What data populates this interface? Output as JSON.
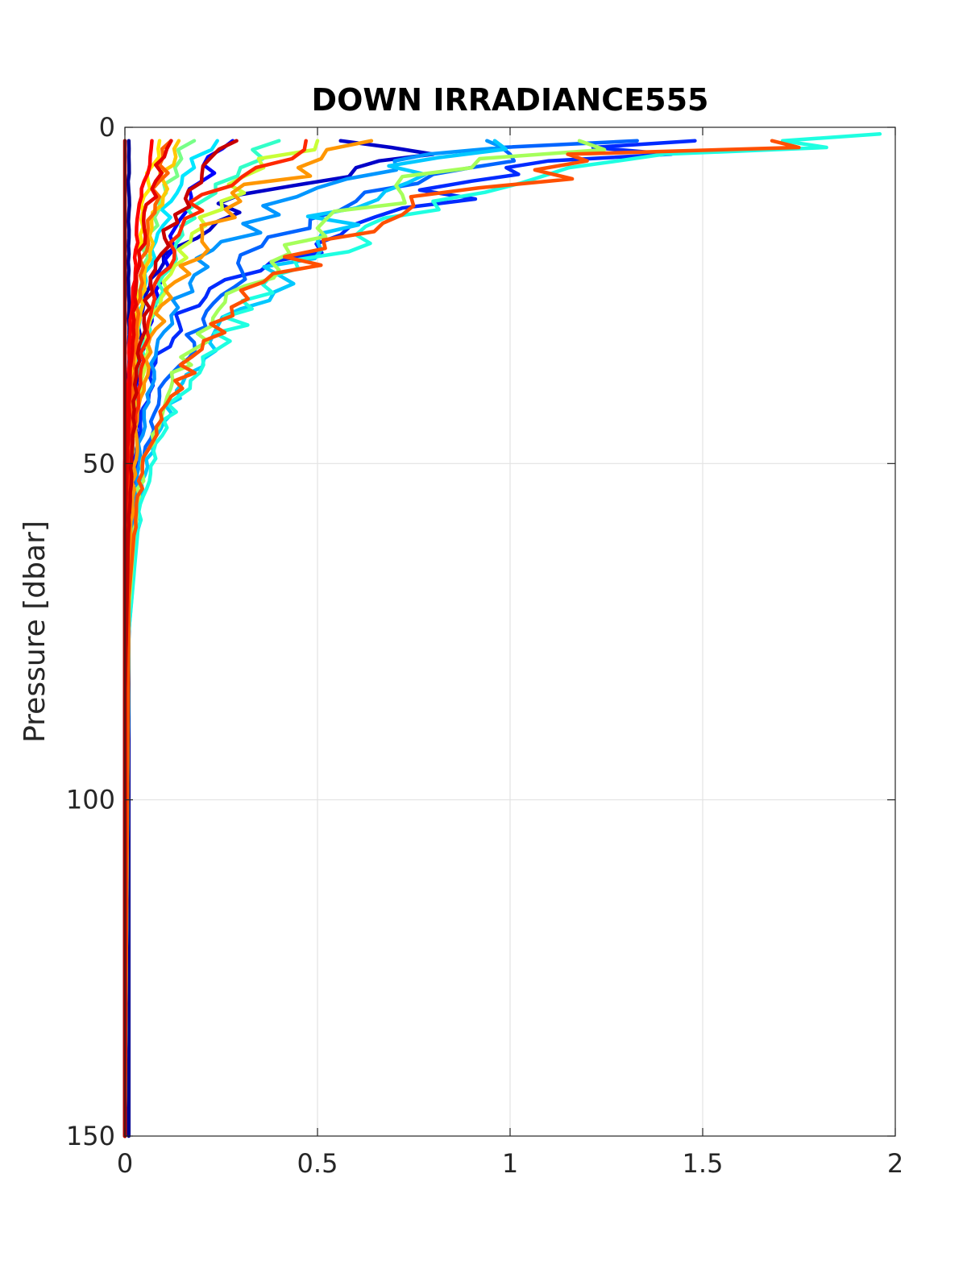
{
  "chart_data": {
    "type": "line",
    "title": "DOWN IRRADIANCE555",
    "xlabel": "",
    "ylabel": "Pressure [dbar]",
    "xlim": [
      0,
      2
    ],
    "ylim": [
      0,
      150
    ],
    "y_reversed": true,
    "grid": true,
    "legend": "none",
    "x_ticks": [
      "0",
      "0.5",
      "1",
      "1.5",
      "2"
    ],
    "y_ticks": [
      "0",
      "50",
      "100",
      "150"
    ],
    "series": [
      {
        "color": "#00008f",
        "points": [
          [
            0.01,
            2
          ],
          [
            0.01,
            150
          ]
        ]
      },
      {
        "color": "#0000c8",
        "points": [
          [
            0.56,
            2
          ],
          [
            0.8,
            4
          ],
          [
            0.6,
            6
          ],
          [
            0.3,
            10
          ],
          [
            0.24,
            14
          ],
          [
            0.1,
            19
          ],
          [
            0.05,
            26
          ],
          [
            0.03,
            36
          ],
          [
            0.02,
            46
          ],
          [
            0.01,
            60
          ],
          [
            0.0,
            90
          ],
          [
            0.0,
            150
          ]
        ]
      },
      {
        "color": "#0000ff",
        "points": [
          [
            0.28,
            2
          ],
          [
            0.2,
            8
          ],
          [
            0.13,
            15
          ],
          [
            0.09,
            22
          ],
          [
            0.06,
            30
          ],
          [
            0.04,
            40
          ],
          [
            0.02,
            52
          ],
          [
            0.01,
            70
          ],
          [
            0.0,
            100
          ],
          [
            0.0,
            150
          ]
        ]
      },
      {
        "color": "#002aff",
        "points": [
          [
            1.48,
            2
          ],
          [
            1.1,
            5
          ],
          [
            0.9,
            8
          ],
          [
            0.72,
            12
          ],
          [
            0.56,
            16
          ],
          [
            0.38,
            20
          ],
          [
            0.22,
            24
          ],
          [
            0.14,
            29
          ],
          [
            0.08,
            35
          ],
          [
            0.04,
            44
          ],
          [
            0.02,
            55
          ],
          [
            0.0,
            80
          ],
          [
            0.0,
            150
          ]
        ]
      },
      {
        "color": "#0064ff",
        "points": [
          [
            1.33,
            2
          ],
          [
            1.0,
            4
          ],
          [
            0.8,
            7
          ],
          [
            0.6,
            11
          ],
          [
            0.48,
            15
          ],
          [
            0.3,
            19
          ],
          [
            0.25,
            25
          ],
          [
            0.18,
            32
          ],
          [
            0.09,
            40
          ],
          [
            0.04,
            50
          ],
          [
            0.02,
            62
          ],
          [
            0.0,
            90
          ],
          [
            0.0,
            150
          ]
        ]
      },
      {
        "color": "#0096ff",
        "points": [
          [
            0.94,
            2
          ],
          [
            0.7,
            5
          ],
          [
            0.5,
            9
          ],
          [
            0.4,
            13
          ],
          [
            0.25,
            17
          ],
          [
            0.18,
            22
          ],
          [
            0.12,
            28
          ],
          [
            0.08,
            34
          ],
          [
            0.05,
            42
          ],
          [
            0.03,
            52
          ],
          [
            0.01,
            70
          ],
          [
            0.0,
            150
          ]
        ]
      },
      {
        "color": "#00c8ff",
        "points": [
          [
            0.96,
            2
          ],
          [
            0.78,
            7
          ],
          [
            0.6,
            12
          ],
          [
            0.5,
            17
          ],
          [
            0.4,
            22
          ],
          [
            0.3,
            27
          ],
          [
            0.22,
            32
          ],
          [
            0.15,
            38
          ],
          [
            0.08,
            46
          ],
          [
            0.04,
            55
          ],
          [
            0.01,
            75
          ],
          [
            0.0,
            150
          ]
        ]
      },
      {
        "color": "#00e6ff",
        "points": [
          [
            0.24,
            2
          ],
          [
            0.18,
            6
          ],
          [
            0.12,
            11
          ],
          [
            0.08,
            17
          ],
          [
            0.05,
            24
          ],
          [
            0.03,
            32
          ],
          [
            0.02,
            42
          ],
          [
            0.01,
            55
          ],
          [
            0.0,
            80
          ],
          [
            0.0,
            150
          ]
        ]
      },
      {
        "color": "#1effe1",
        "points": [
          [
            1.96,
            1
          ],
          [
            1.4,
            4
          ],
          [
            1.1,
            7
          ],
          [
            0.8,
            11
          ],
          [
            0.6,
            16
          ],
          [
            0.45,
            21
          ],
          [
            0.33,
            27
          ],
          [
            0.24,
            33
          ],
          [
            0.14,
            40
          ],
          [
            0.08,
            47
          ],
          [
            0.04,
            56
          ],
          [
            0.01,
            75
          ],
          [
            0.0,
            150
          ]
        ]
      },
      {
        "color": "#32ffc8",
        "points": [
          [
            0.4,
            2
          ],
          [
            0.3,
            6
          ],
          [
            0.2,
            11
          ],
          [
            0.15,
            16
          ],
          [
            0.1,
            22
          ],
          [
            0.06,
            29
          ],
          [
            0.04,
            37
          ],
          [
            0.02,
            46
          ],
          [
            0.01,
            58
          ],
          [
            0.0,
            85
          ],
          [
            0.0,
            150
          ]
        ]
      },
      {
        "color": "#78ff87",
        "points": [
          [
            0.18,
            2
          ],
          [
            0.13,
            6
          ],
          [
            0.09,
            11
          ],
          [
            0.06,
            17
          ],
          [
            0.04,
            24
          ],
          [
            0.02,
            33
          ],
          [
            0.01,
            44
          ],
          [
            0.0,
            60
          ],
          [
            0.0,
            150
          ]
        ]
      },
      {
        "color": "#a5ff5a",
        "points": [
          [
            1.18,
            2
          ],
          [
            0.9,
            6
          ],
          [
            0.72,
            10
          ],
          [
            0.5,
            15
          ],
          [
            0.38,
            20
          ],
          [
            0.26,
            26
          ],
          [
            0.18,
            33
          ],
          [
            0.11,
            40
          ],
          [
            0.06,
            48
          ],
          [
            0.03,
            56
          ],
          [
            0.01,
            72
          ],
          [
            0.0,
            150
          ]
        ]
      },
      {
        "color": "#c8ff37",
        "points": [
          [
            0.5,
            2
          ],
          [
            0.36,
            6
          ],
          [
            0.25,
            11
          ],
          [
            0.17,
            17
          ],
          [
            0.1,
            23
          ],
          [
            0.06,
            30
          ],
          [
            0.04,
            38
          ],
          [
            0.02,
            47
          ],
          [
            0.01,
            58
          ],
          [
            0.0,
            85
          ],
          [
            0.0,
            150
          ]
        ]
      },
      {
        "color": "#ffe600",
        "points": [
          [
            0.09,
            2
          ],
          [
            0.06,
            8
          ],
          [
            0.04,
            16
          ],
          [
            0.03,
            25
          ],
          [
            0.02,
            35
          ],
          [
            0.01,
            48
          ],
          [
            0.0,
            65
          ],
          [
            0.0,
            150
          ]
        ]
      },
      {
        "color": "#ffc800",
        "points": [
          [
            0.14,
            2
          ],
          [
            0.1,
            8
          ],
          [
            0.07,
            15
          ],
          [
            0.05,
            23
          ],
          [
            0.03,
            32
          ],
          [
            0.02,
            42
          ],
          [
            0.01,
            55
          ],
          [
            0.0,
            75
          ],
          [
            0.0,
            150
          ]
        ]
      },
      {
        "color": "#ff9600",
        "points": [
          [
            0.64,
            2
          ],
          [
            0.45,
            6
          ],
          [
            0.3,
            11
          ],
          [
            0.2,
            17
          ],
          [
            0.13,
            23
          ],
          [
            0.08,
            30
          ],
          [
            0.05,
            38
          ],
          [
            0.03,
            46
          ],
          [
            0.02,
            55
          ],
          [
            0.0,
            80
          ],
          [
            0.0,
            150
          ]
        ]
      },
      {
        "color": "#ff6400",
        "points": [
          [
            0.12,
            2
          ],
          [
            0.09,
            8
          ],
          [
            0.06,
            15
          ],
          [
            0.04,
            22
          ],
          [
            0.03,
            30
          ],
          [
            0.02,
            40
          ],
          [
            0.01,
            52
          ],
          [
            0.0,
            70
          ],
          [
            0.0,
            150
          ]
        ]
      },
      {
        "color": "#ff5000",
        "points": [
          [
            1.68,
            2
          ],
          [
            1.2,
            5
          ],
          [
            0.92,
            9
          ],
          [
            0.72,
            13
          ],
          [
            0.52,
            18
          ],
          [
            0.36,
            23
          ],
          [
            0.28,
            28
          ],
          [
            0.2,
            33
          ],
          [
            0.12,
            40
          ],
          [
            0.06,
            48
          ],
          [
            0.03,
            56
          ],
          [
            0.01,
            70
          ],
          [
            0.0,
            150
          ]
        ]
      },
      {
        "color": "#ff2800",
        "points": [
          [
            0.47,
            2
          ],
          [
            0.34,
            6
          ],
          [
            0.2,
            10
          ],
          [
            0.14,
            16
          ],
          [
            0.09,
            22
          ],
          [
            0.06,
            29
          ],
          [
            0.04,
            37
          ],
          [
            0.02,
            46
          ],
          [
            0.01,
            56
          ],
          [
            0.0,
            85
          ],
          [
            0.0,
            150
          ]
        ]
      },
      {
        "color": "#ff0000",
        "points": [
          [
            0.07,
            2
          ],
          [
            0.05,
            8
          ],
          [
            0.03,
            16
          ],
          [
            0.02,
            25
          ],
          [
            0.01,
            36
          ],
          [
            0.0,
            50
          ],
          [
            0.0,
            150
          ]
        ]
      },
      {
        "color": "#e60000",
        "points": [
          [
            0.12,
            2
          ],
          [
            0.08,
            8
          ],
          [
            0.05,
            15
          ],
          [
            0.03,
            23
          ],
          [
            0.02,
            32
          ],
          [
            0.01,
            44
          ],
          [
            0.0,
            60
          ],
          [
            0.0,
            150
          ]
        ]
      },
      {
        "color": "#c80000",
        "points": [
          [
            0.29,
            2
          ],
          [
            0.2,
            7
          ],
          [
            0.13,
            13
          ],
          [
            0.08,
            20
          ],
          [
            0.05,
            28
          ],
          [
            0.03,
            37
          ],
          [
            0.02,
            47
          ],
          [
            0.01,
            58
          ],
          [
            0.0,
            85
          ],
          [
            0.0,
            150
          ]
        ]
      },
      {
        "color": "#aa0000",
        "points": [
          [
            0.0,
            2
          ],
          [
            0.0,
            150
          ]
        ]
      }
    ]
  }
}
